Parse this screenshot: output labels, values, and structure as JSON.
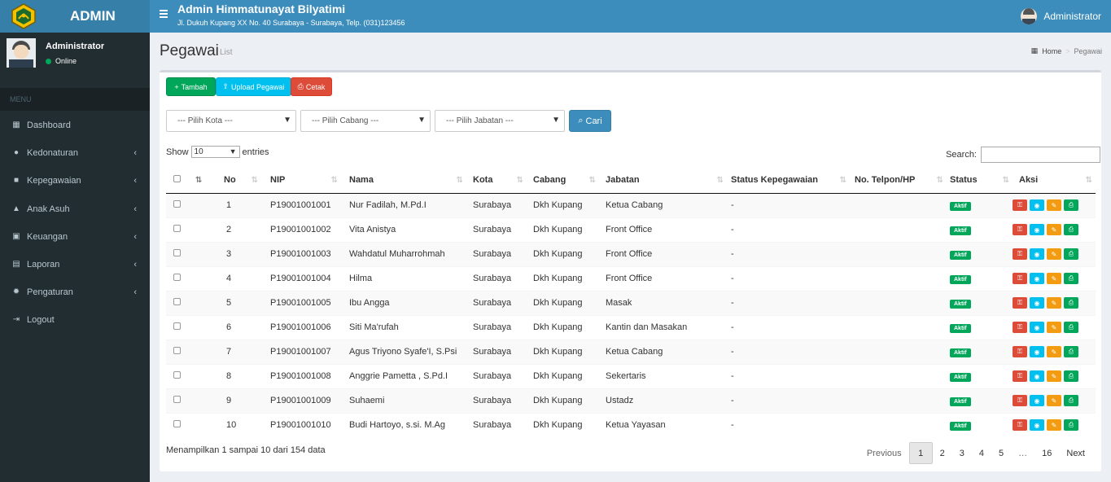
{
  "header": {
    "logo_text": "ADMIN",
    "app_title": "Admin Himmatunayat Bilyatimi",
    "app_subtitle": "Jl. Dukuh Kupang XX No. 40 Surabaya - Surabaya, Telp. (031)123456",
    "user": "Administrator"
  },
  "sidebar": {
    "user_name": "Administrator",
    "user_status": "Online",
    "menu_header": "MENU",
    "items": [
      {
        "label": "Dashboard",
        "icon": "dashboard-icon",
        "has_children": false
      },
      {
        "label": "Kedonaturan",
        "icon": "users-icon",
        "has_children": true
      },
      {
        "label": "Kepegawaian",
        "icon": "briefcase-icon",
        "has_children": true
      },
      {
        "label": "Anak Asuh",
        "icon": "graduation-cap-icon",
        "has_children": true
      },
      {
        "label": "Keuangan",
        "icon": "money-icon",
        "has_children": true
      },
      {
        "label": "Laporan",
        "icon": "file-icon",
        "has_children": true
      },
      {
        "label": "Pengaturan",
        "icon": "gear-icon",
        "has_children": true
      },
      {
        "label": "Logout",
        "icon": "sign-out-icon",
        "has_children": false
      }
    ]
  },
  "page": {
    "title": "Pegawai",
    "subtitle": "List",
    "breadcrumb": [
      "Home",
      "Pegawai"
    ]
  },
  "toolbar": {
    "add_label": "Tambah",
    "upload_label": "Upload Pegawai",
    "print_label": "Cetak"
  },
  "filters": {
    "kota": "--- Pilih Kota ---",
    "cabang": "--- Pilih Cabang ---",
    "jabatan": "--- Pilih Jabatan ---",
    "search_label": "Cari"
  },
  "table_controls": {
    "show_label": "Show",
    "entries_value": "10",
    "entries_label": "entries",
    "search_label": "Search:"
  },
  "table": {
    "headers": [
      "No",
      "NIP",
      "Nama",
      "Kota",
      "Cabang",
      "Jabatan",
      "Status Kepegawaian",
      "No. Telpon/HP",
      "Status",
      "Aksi"
    ],
    "rows": [
      {
        "no": "1",
        "nip": "P19001001001",
        "nama": "Nur Fadilah, M.Pd.I",
        "kota": "Surabaya",
        "cabang": "Dkh Kupang",
        "jabatan": "Ketua Cabang",
        "status_kepegawaian": "-",
        "telpon": "",
        "status": "Aktif"
      },
      {
        "no": "2",
        "nip": "P19001001002",
        "nama": "Vita Anistya",
        "kota": "Surabaya",
        "cabang": "Dkh Kupang",
        "jabatan": "Front Office",
        "status_kepegawaian": "-",
        "telpon": "",
        "status": "Aktif"
      },
      {
        "no": "3",
        "nip": "P19001001003",
        "nama": "Wahdatul Muharrohmah",
        "kota": "Surabaya",
        "cabang": "Dkh Kupang",
        "jabatan": "Front Office",
        "status_kepegawaian": "-",
        "telpon": "",
        "status": "Aktif"
      },
      {
        "no": "4",
        "nip": "P19001001004",
        "nama": "Hilma",
        "kota": "Surabaya",
        "cabang": "Dkh Kupang",
        "jabatan": "Front Office",
        "status_kepegawaian": "-",
        "telpon": "",
        "status": "Aktif"
      },
      {
        "no": "5",
        "nip": "P19001001005",
        "nama": "Ibu Angga",
        "kota": "Surabaya",
        "cabang": "Dkh Kupang",
        "jabatan": "Masak",
        "status_kepegawaian": "-",
        "telpon": "",
        "status": "Aktif"
      },
      {
        "no": "6",
        "nip": "P19001001006",
        "nama": "Siti Ma'rufah",
        "kota": "Surabaya",
        "cabang": "Dkh Kupang",
        "jabatan": "Kantin dan Masakan",
        "status_kepegawaian": "-",
        "telpon": "",
        "status": "Aktif"
      },
      {
        "no": "7",
        "nip": "P19001001007",
        "nama": "Agus Triyono Syafe'I, S.Psi",
        "kota": "Surabaya",
        "cabang": "Dkh Kupang",
        "jabatan": "Ketua Cabang",
        "status_kepegawaian": "-",
        "telpon": "",
        "status": "Aktif"
      },
      {
        "no": "8",
        "nip": "P19001001008",
        "nama": "Anggrie Pametta , S.Pd.I",
        "kota": "Surabaya",
        "cabang": "Dkh Kupang",
        "jabatan": "Sekertaris",
        "status_kepegawaian": "-",
        "telpon": "",
        "status": "Aktif"
      },
      {
        "no": "9",
        "nip": "P19001001009",
        "nama": "Suhaemi",
        "kota": "Surabaya",
        "cabang": "Dkh Kupang",
        "jabatan": "Ustadz",
        "status_kepegawaian": "-",
        "telpon": "",
        "status": "Aktif"
      },
      {
        "no": "10",
        "nip": "P19001001010",
        "nama": "Budi Hartoyo, s.si. M.Ag",
        "kota": "Surabaya",
        "cabang": "Dkh Kupang",
        "jabatan": "Ketua Yayasan",
        "status_kepegawaian": "-",
        "telpon": "",
        "status": "Aktif"
      }
    ]
  },
  "footer": {
    "info": "Menampilkan 1 sampai 10 dari 154 data",
    "previous": "Previous",
    "next": "Next",
    "pages": [
      "1",
      "2",
      "3",
      "4",
      "5",
      "…",
      "16"
    ],
    "current_page": "1"
  },
  "colors": {
    "header": "#3c8dbc",
    "sidebar": "#222d32",
    "success": "#00a65a",
    "info": "#00c0ef",
    "danger": "#dd4b39",
    "warning": "#f39c12"
  }
}
